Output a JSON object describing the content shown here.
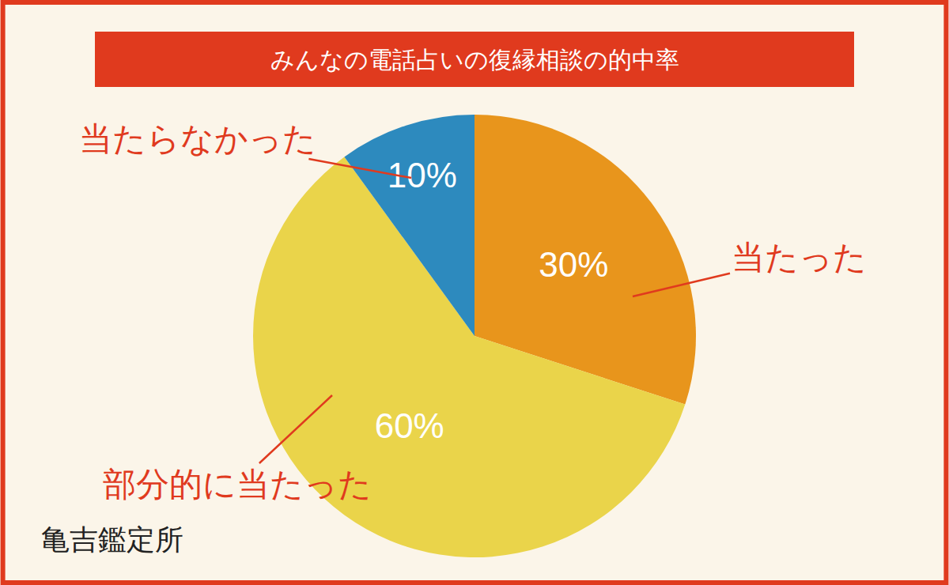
{
  "chart_data": {
    "type": "pie",
    "title": "みんなの電話占いの復縁相談の的中率",
    "categories": [
      "当たった",
      "部分的に当たった",
      "当たらなかった"
    ],
    "values": [
      30,
      60,
      10
    ],
    "value_labels": [
      "30%",
      "60%",
      "10%"
    ],
    "colors": [
      "#E8951C",
      "#EAD44A",
      "#2D8ABE"
    ],
    "data_labels": true,
    "logo": "亀吉鑑定所"
  }
}
